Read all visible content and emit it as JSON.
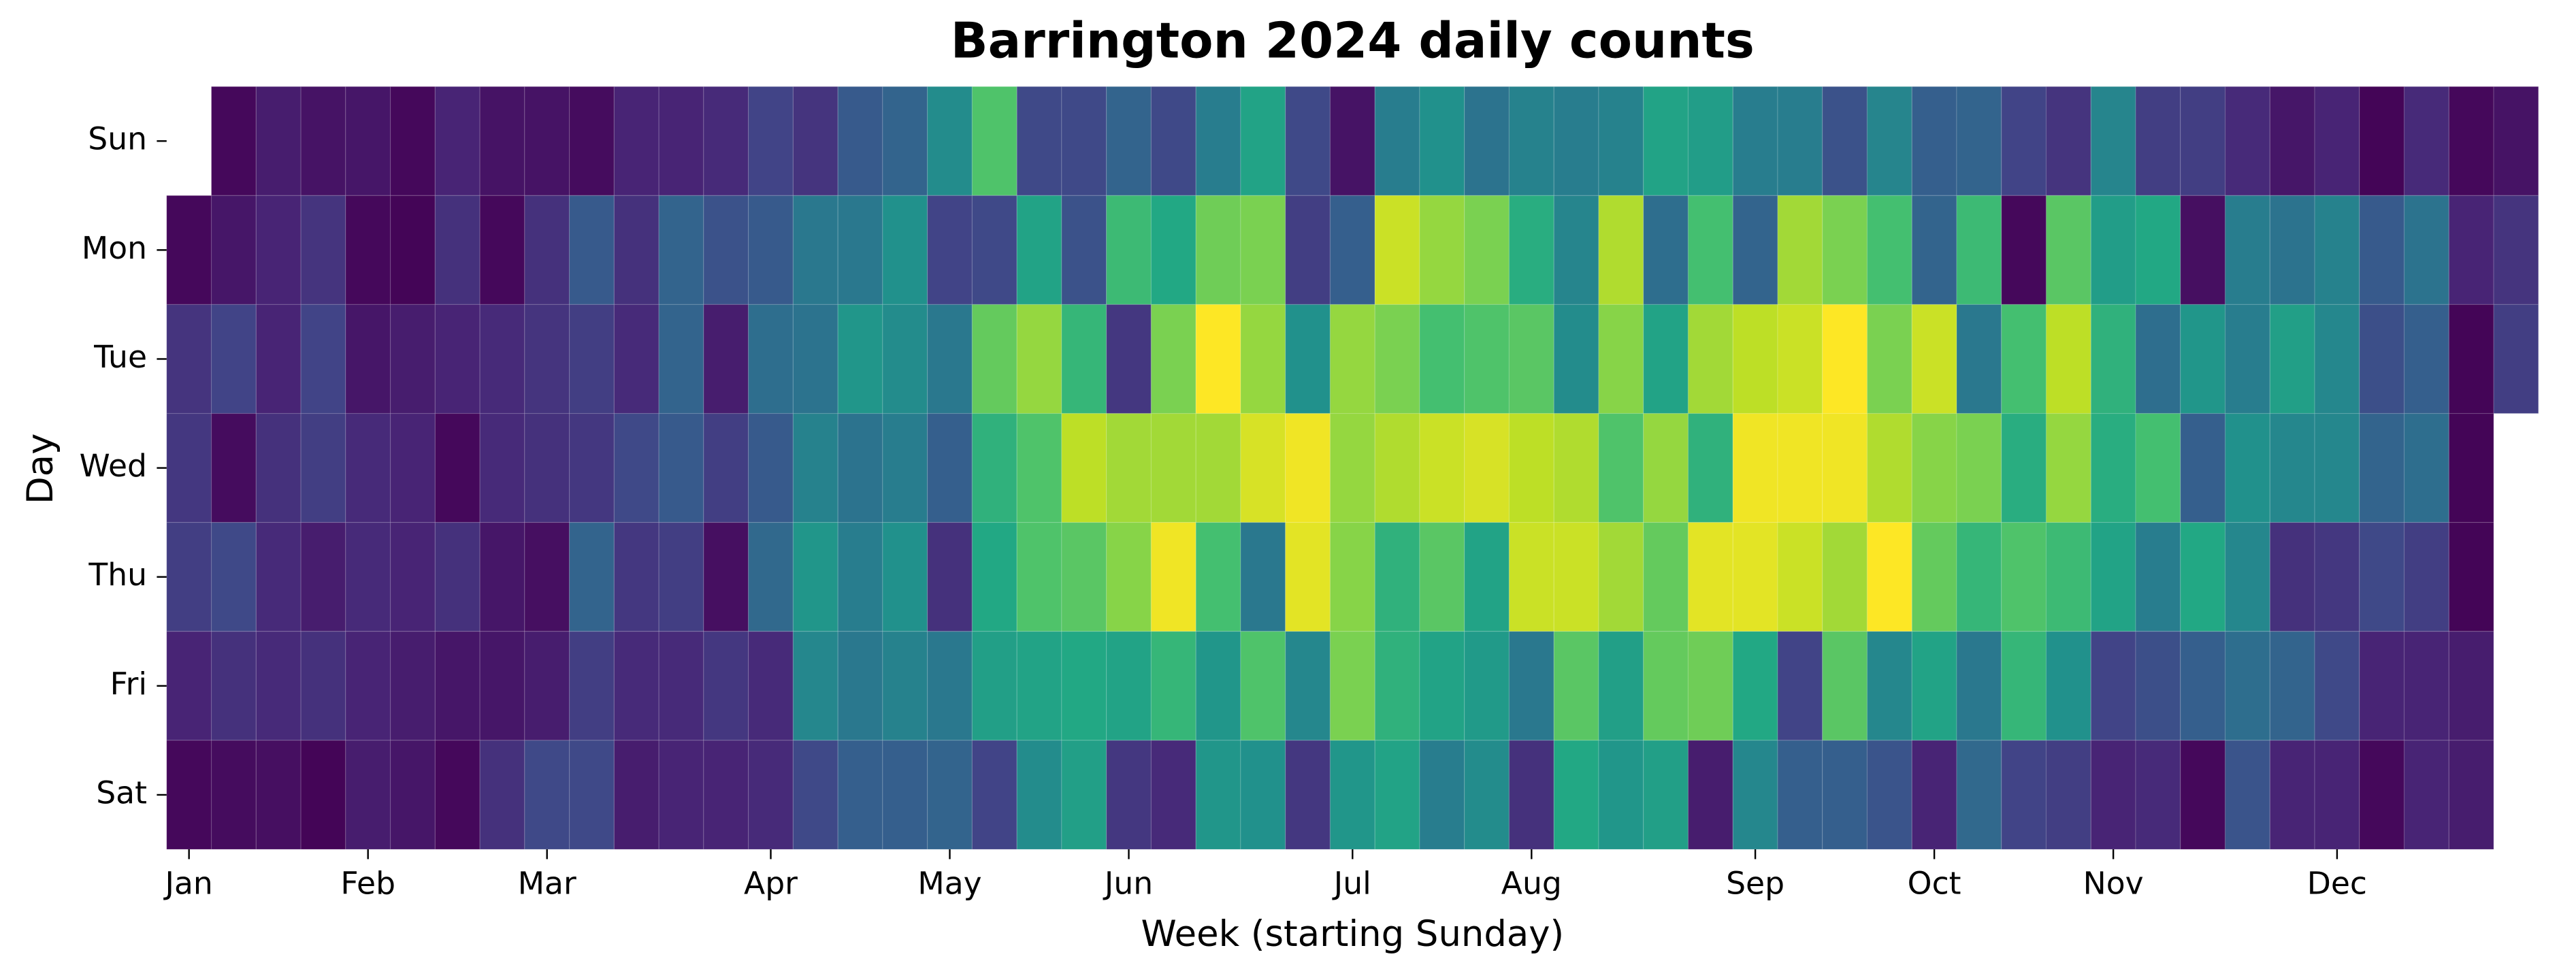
{
  "chart_data": {
    "type": "calendar-heatmap",
    "title": "Barrington 2024 daily counts",
    "x_label": "Week (starting Sunday)",
    "y_label": "Day",
    "y_categories": [
      "Sun",
      "Mon",
      "Tue",
      "Wed",
      "Thu",
      "Fri",
      "Sat"
    ],
    "colormap": "viridis",
    "clim": [
      0,
      100
    ],
    "xlim": [
      0,
      53
    ],
    "xticks": [
      {
        "value": 0.5,
        "label": "Jan"
      },
      {
        "value": 4.5,
        "label": "Feb"
      },
      {
        "value": 8.5,
        "label": "Mar"
      },
      {
        "value": 13.5,
        "label": "Apr"
      },
      {
        "value": 17.5,
        "label": "May"
      },
      {
        "value": 21.5,
        "label": "Jun"
      },
      {
        "value": 26.5,
        "label": "Jul"
      },
      {
        "value": 30.5,
        "label": "Aug"
      },
      {
        "value": 35.5,
        "label": "Sep"
      },
      {
        "value": 39.5,
        "label": "Oct"
      },
      {
        "value": 43.5,
        "label": "Nov"
      },
      {
        "value": 48.5,
        "label": "Dec"
      }
    ],
    "values": [
      [
        null,
        2,
        8,
        5,
        6,
        2,
        10,
        5,
        5,
        3,
        10,
        10,
        12,
        20,
        15,
        28,
        32,
        48,
        72,
        22,
        22,
        32,
        22,
        42,
        58,
        22,
        5,
        42,
        50,
        38,
        44,
        42,
        44,
        58,
        55,
        42,
        42,
        25,
        45,
        30,
        32,
        20,
        15,
        45,
        18,
        18,
        12,
        6,
        10,
        1,
        12,
        2,
        5
      ],
      [
        2,
        6,
        10,
        15,
        2,
        1,
        14,
        2,
        14,
        28,
        14,
        32,
        25,
        28,
        40,
        40,
        50,
        20,
        22,
        58,
        25,
        68,
        60,
        78,
        80,
        18,
        30,
        92,
        84,
        80,
        62,
        45,
        88,
        36,
        70,
        32,
        86,
        80,
        70,
        32,
        68,
        2,
        74,
        55,
        60,
        4,
        42,
        38,
        44,
        28,
        38,
        10,
        15
      ],
      [
        15,
        20,
        10,
        20,
        6,
        8,
        10,
        12,
        15,
        18,
        12,
        32,
        8,
        36,
        38,
        52,
        48,
        40,
        76,
        84,
        66,
        16,
        80,
        100,
        84,
        50,
        84,
        80,
        70,
        72,
        74,
        48,
        82,
        58,
        86,
        90,
        92,
        100,
        80,
        92,
        40,
        70,
        90,
        64,
        36,
        52,
        42,
        56,
        46,
        24,
        30,
        1,
        18
      ],
      [
        16,
        3,
        14,
        18,
        12,
        10,
        2,
        12,
        14,
        16,
        22,
        28,
        18,
        28,
        44,
        38,
        42,
        30,
        64,
        72,
        90,
        86,
        86,
        86,
        94,
        98,
        84,
        88,
        92,
        94,
        90,
        88,
        72,
        84,
        64,
        98,
        98,
        98,
        88,
        82,
        80,
        62,
        84,
        62,
        70,
        30,
        50,
        46,
        46,
        32,
        36,
        1,
        null
      ],
      [
        18,
        22,
        12,
        8,
        12,
        10,
        14,
        6,
        4,
        32,
        16,
        18,
        4,
        34,
        52,
        42,
        50,
        14,
        60,
        72,
        74,
        82,
        98,
        70,
        40,
        96,
        82,
        64,
        74,
        58,
        92,
        92,
        86,
        76,
        96,
        96,
        92,
        86,
        100,
        76,
        66,
        72,
        68,
        58,
        42,
        60,
        46,
        14,
        16,
        22,
        18,
        1,
        null
      ],
      [
        10,
        14,
        12,
        14,
        10,
        8,
        6,
        6,
        8,
        18,
        12,
        12,
        16,
        12,
        46,
        40,
        44,
        40,
        56,
        58,
        60,
        58,
        66,
        52,
        72,
        46,
        80,
        64,
        58,
        54,
        40,
        74,
        56,
        76,
        78,
        60,
        20,
        74,
        46,
        58,
        40,
        66,
        50,
        20,
        24,
        30,
        36,
        32,
        22,
        10,
        10,
        8,
        null
      ],
      [
        2,
        3,
        4,
        1,
        8,
        6,
        2,
        14,
        22,
        22,
        8,
        10,
        10,
        12,
        22,
        30,
        30,
        32,
        20,
        48,
        56,
        16,
        12,
        52,
        50,
        16,
        52,
        58,
        42,
        48,
        14,
        60,
        52,
        56,
        8,
        46,
        30,
        30,
        26,
        10,
        34,
        20,
        18,
        10,
        12,
        2,
        26,
        10,
        10,
        2,
        10,
        8,
        null
      ]
    ]
  }
}
